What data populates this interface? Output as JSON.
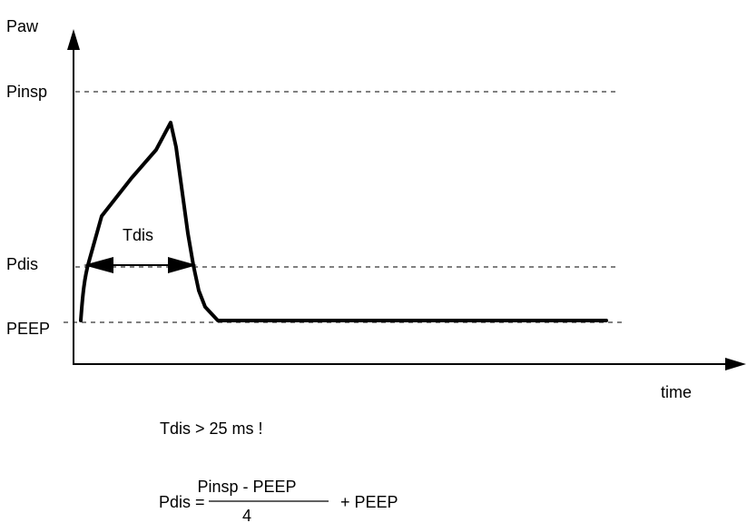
{
  "axes": {
    "y_label": "Paw",
    "x_label": "time"
  },
  "levels": {
    "pinsp": "Pinsp",
    "pdis": "Pdis",
    "peep": "PEEP"
  },
  "interval": {
    "label": "Tdis"
  },
  "condition": {
    "text": "Tdis > 25 ms !"
  },
  "formula": {
    "lhs": "Pdis =",
    "numerator": "Pinsp - PEEP",
    "denominator": "4",
    "rhs": "+ PEEP"
  },
  "colors": {
    "ink": "#000000",
    "background": "#ffffff"
  }
}
